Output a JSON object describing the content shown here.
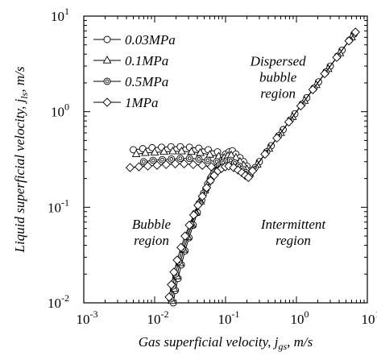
{
  "chart_data": {
    "type": "scatter",
    "xlabel": "Gas superficial velocity, j",
    "xlabel_sub": "gs",
    "xlabel_suffix": ", m/s",
    "ylabel": "Liquid superficial velocity, j",
    "ylabel_sub": "ls",
    "ylabel_suffix": ", m/s",
    "x_scale": "log",
    "y_scale": "log",
    "xlim": [
      0.001,
      10
    ],
    "ylim": [
      0.01,
      10
    ],
    "x_ticks": [
      {
        "value": 0.001,
        "base": "10",
        "exp": "-3"
      },
      {
        "value": 0.01,
        "base": "10",
        "exp": "-2"
      },
      {
        "value": 0.1,
        "base": "10",
        "exp": "-1"
      },
      {
        "value": 1,
        "base": "10",
        "exp": "0"
      },
      {
        "value": 10,
        "base": "10",
        "exp": "1"
      }
    ],
    "y_ticks": [
      {
        "value": 0.01,
        "base": "10",
        "exp": "-2"
      },
      {
        "value": 0.1,
        "base": "10",
        "exp": "-1"
      },
      {
        "value": 1,
        "base": "10",
        "exp": "0"
      },
      {
        "value": 10,
        "base": "10",
        "exp": "1"
      }
    ],
    "grid": false,
    "legend_position": "top-left",
    "region_labels": [
      {
        "lines": [
          "Dispersed",
          "bubble",
          "region"
        ],
        "x": 0.55,
        "y": 2.3
      },
      {
        "lines": [
          "Bubble",
          "region"
        ],
        "x": 0.009,
        "y": 0.055
      },
      {
        "lines": [
          "Intermittent",
          "region"
        ],
        "x": 0.9,
        "y": 0.055
      }
    ],
    "series": [
      {
        "name": "0.03MPa",
        "marker": "circle",
        "plateau_x": [
          0.005,
          0.0068,
          0.0092,
          0.0125,
          0.017,
          0.023,
          0.031,
          0.042,
          0.057,
          0.077
        ],
        "plateau_y": [
          0.4,
          0.41,
          0.42,
          0.425,
          0.43,
          0.43,
          0.425,
          0.415,
          0.4,
          0.38
        ],
        "boundary_x": [
          0.0183,
          0.0196,
          0.0214,
          0.0238,
          0.0268,
          0.0305,
          0.035,
          0.04,
          0.046,
          0.053,
          0.061,
          0.069,
          0.078,
          0.089,
          0.1,
          0.112,
          0.125
        ],
        "boundary_y": [
          0.01,
          0.0135,
          0.018,
          0.025,
          0.035,
          0.048,
          0.065,
          0.088,
          0.118,
          0.155,
          0.2,
          0.245,
          0.29,
          0.33,
          0.36,
          0.38,
          0.39
        ],
        "transition_x": [
          0.14,
          0.16,
          0.18,
          0.2,
          0.225
        ],
        "transition_y": [
          0.36,
          0.33,
          0.3,
          0.27,
          0.24
        ],
        "diag_x": [
          0.3,
          0.44,
          0.65,
          0.95,
          1.4,
          2.05,
          3.0,
          4.4,
          6.5
        ],
        "diag_y": [
          0.3,
          0.44,
          0.65,
          0.95,
          1.4,
          2.05,
          3.0,
          4.4,
          6.5
        ]
      },
      {
        "name": "0.1MPa",
        "marker": "triangle",
        "plateau_x": [
          0.0055,
          0.0074,
          0.01,
          0.0135,
          0.018,
          0.024,
          0.033,
          0.044,
          0.06,
          0.08
        ],
        "plateau_y": [
          0.36,
          0.37,
          0.375,
          0.38,
          0.385,
          0.385,
          0.38,
          0.37,
          0.355,
          0.34
        ],
        "boundary_x": [
          0.0175,
          0.0188,
          0.0205,
          0.0228,
          0.0257,
          0.0293,
          0.0336,
          0.0385,
          0.0443,
          0.051,
          0.0585,
          0.066,
          0.075,
          0.085,
          0.096,
          0.108,
          0.12
        ],
        "boundary_y": [
          0.0105,
          0.014,
          0.019,
          0.026,
          0.036,
          0.049,
          0.066,
          0.088,
          0.115,
          0.15,
          0.19,
          0.23,
          0.27,
          0.305,
          0.33,
          0.345,
          0.35
        ],
        "transition_x": [
          0.14,
          0.16,
          0.18,
          0.2,
          0.22
        ],
        "transition_y": [
          0.33,
          0.3,
          0.275,
          0.25,
          0.225
        ],
        "diag_x": [
          0.28,
          0.41,
          0.6,
          0.88,
          1.3,
          1.9,
          2.8,
          4.1,
          6.0
        ],
        "diag_y": [
          0.28,
          0.41,
          0.6,
          0.88,
          1.3,
          1.9,
          2.8,
          4.1,
          6.0
        ]
      },
      {
        "name": "0.5MPa",
        "marker": "circle-dot",
        "plateau_x": [
          0.007,
          0.0095,
          0.0128,
          0.0172,
          0.023,
          0.031,
          0.042,
          0.056,
          0.075
        ],
        "plateau_y": [
          0.3,
          0.31,
          0.315,
          0.32,
          0.325,
          0.325,
          0.32,
          0.31,
          0.3
        ],
        "boundary_x": [
          0.0168,
          0.018,
          0.0196,
          0.0218,
          0.0246,
          0.028,
          0.0322,
          0.037,
          0.0425,
          0.049,
          0.056,
          0.0635,
          0.072,
          0.082,
          0.093,
          0.105,
          0.118
        ],
        "boundary_y": [
          0.011,
          0.015,
          0.02,
          0.027,
          0.037,
          0.05,
          0.066,
          0.086,
          0.11,
          0.14,
          0.175,
          0.21,
          0.245,
          0.275,
          0.295,
          0.305,
          0.31
        ],
        "transition_x": [
          0.135,
          0.155,
          0.175,
          0.195,
          0.215
        ],
        "transition_y": [
          0.29,
          0.27,
          0.25,
          0.23,
          0.215
        ],
        "diag_x": [
          0.26,
          0.38,
          0.56,
          0.82,
          1.2,
          1.76,
          2.6,
          3.8,
          5.6
        ],
        "diag_y": [
          0.26,
          0.38,
          0.56,
          0.82,
          1.2,
          1.76,
          2.6,
          3.8,
          5.6
        ]
      },
      {
        "name": "1MPa",
        "marker": "diamond",
        "plateau_x": [
          0.0045,
          0.006,
          0.008,
          0.0108,
          0.0145,
          0.0195,
          0.026,
          0.035,
          0.047,
          0.063,
          0.085
        ],
        "plateau_y": [
          0.26,
          0.265,
          0.27,
          0.275,
          0.28,
          0.285,
          0.285,
          0.28,
          0.275,
          0.265,
          0.255
        ],
        "boundary_x": [
          0.016,
          0.0172,
          0.0187,
          0.0208,
          0.0235,
          0.0268,
          0.0308,
          0.0355,
          0.0408,
          0.047,
          0.054,
          0.0612,
          0.069,
          0.078,
          0.088,
          0.099,
          0.111
        ],
        "boundary_y": [
          0.0115,
          0.0155,
          0.021,
          0.028,
          0.038,
          0.05,
          0.065,
          0.083,
          0.105,
          0.13,
          0.16,
          0.19,
          0.215,
          0.24,
          0.255,
          0.265,
          0.27
        ],
        "transition_x": [
          0.13,
          0.15,
          0.17,
          0.19,
          0.21
        ],
        "transition_y": [
          0.26,
          0.245,
          0.23,
          0.215,
          0.205
        ],
        "diag_x": [
          0.24,
          0.36,
          0.53,
          0.78,
          1.15,
          1.7,
          2.5,
          3.7,
          5.5,
          6.8
        ],
        "diag_y": [
          0.24,
          0.36,
          0.53,
          0.78,
          1.15,
          1.7,
          2.5,
          3.7,
          5.5,
          6.8
        ]
      }
    ]
  }
}
